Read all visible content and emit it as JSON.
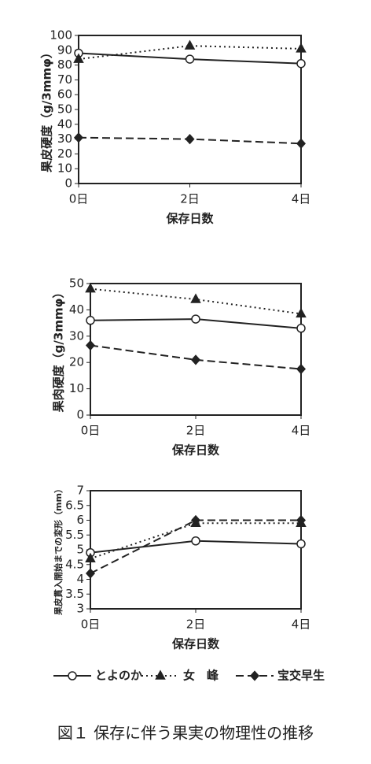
{
  "chart_data": [
    {
      "type": "line",
      "x_label": "保存日数",
      "y_label": "果皮硬度（g/3mmφ）",
      "categories": [
        "0日",
        "2日",
        "4日"
      ],
      "ylim": [
        0,
        100
      ],
      "yticks": [
        0,
        10,
        20,
        30,
        40,
        50,
        60,
        70,
        80,
        90,
        100
      ],
      "series": [
        {
          "name": "とよのか",
          "color": "#222",
          "marker": "circle",
          "dash": "solid",
          "values": [
            88,
            84,
            81
          ]
        },
        {
          "name": "女　峰",
          "color": "#222",
          "marker": "triangle",
          "dash": "dotted",
          "values": [
            84,
            93,
            91
          ]
        },
        {
          "name": "宝交早生",
          "color": "#222",
          "marker": "diamond",
          "dash": "dashed",
          "values": [
            31,
            30,
            27
          ]
        }
      ]
    },
    {
      "type": "line",
      "x_label": "保存日数",
      "y_label": "果肉硬度（g/3mmφ）",
      "categories": [
        "0日",
        "2日",
        "4日"
      ],
      "ylim": [
        0,
        50
      ],
      "yticks": [
        0,
        10,
        20,
        30,
        40,
        50
      ],
      "series": [
        {
          "name": "とよのか",
          "color": "#222",
          "marker": "circle",
          "dash": "solid",
          "values": [
            36,
            36.5,
            33
          ]
        },
        {
          "name": "女　峰",
          "color": "#222",
          "marker": "triangle",
          "dash": "dotted",
          "values": [
            48,
            44,
            38.5
          ]
        },
        {
          "name": "宝交早生",
          "color": "#222",
          "marker": "diamond",
          "dash": "dashed",
          "values": [
            26.5,
            21,
            17.5
          ]
        }
      ]
    },
    {
      "type": "line",
      "x_label": "保存日数",
      "y_label": "果皮貫入開始までの変形（mm）",
      "categories": [
        "0日",
        "2日",
        "4日"
      ],
      "ylim": [
        3,
        7
      ],
      "yticks": [
        3,
        3.5,
        4,
        4.5,
        5,
        5.5,
        6,
        6.5,
        7
      ],
      "legend": "bottom",
      "series": [
        {
          "name": "とよのか",
          "color": "#222",
          "marker": "circle",
          "dash": "solid",
          "values": [
            4.9,
            5.3,
            5.2
          ]
        },
        {
          "name": "女　峰",
          "color": "#222",
          "marker": "triangle",
          "dash": "dotted",
          "values": [
            4.7,
            5.9,
            5.9
          ]
        },
        {
          "name": "宝交早生",
          "color": "#222",
          "marker": "diamond",
          "dash": "dashed",
          "values": [
            4.2,
            6.0,
            6.0
          ]
        }
      ]
    }
  ],
  "caption": "図１ 保存に伴う果実の物理性の推移"
}
